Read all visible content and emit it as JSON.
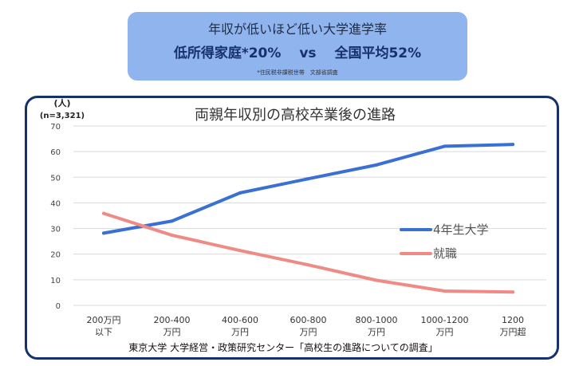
{
  "banner": {
    "title": "年収が低いほど低い大学進学率",
    "subtitle": "低所得家庭*20%　 vs 　全国平均52%",
    "note": "*住民税非課税世帯　文部省調査"
  },
  "chart_data": {
    "type": "line",
    "title": "両親年収別の高校卒業後の進路",
    "ylabel_unit": "(人)",
    "ylabel_n": "(n=3,321)",
    "ylim": [
      0,
      70
    ],
    "yticks": [
      0,
      10,
      20,
      30,
      40,
      50,
      60,
      70
    ],
    "categories": [
      [
        "200万円",
        "以下"
      ],
      [
        "200-400",
        "万円"
      ],
      [
        "400-600",
        "万円"
      ],
      [
        "600-800",
        "万円"
      ],
      [
        "800-1000",
        "万円"
      ],
      [
        "1000-1200",
        "万円"
      ],
      [
        "1200",
        "万円超"
      ]
    ],
    "series": [
      {
        "name": "4年生大学",
        "color": "#3a70d4",
        "values": [
          28.2,
          32.9,
          43.9,
          49.4,
          54.8,
          62.1,
          62.8
        ]
      },
      {
        "name": "就職",
        "color": "#ef8a85",
        "values": [
          35.9,
          27.4,
          21.4,
          15.8,
          9.8,
          5.6,
          5.2
        ]
      }
    ],
    "grid": true,
    "legend_position": "right",
    "source": "東京大学 大学経営・政策研究センター「高校生の進路についての調査」"
  }
}
